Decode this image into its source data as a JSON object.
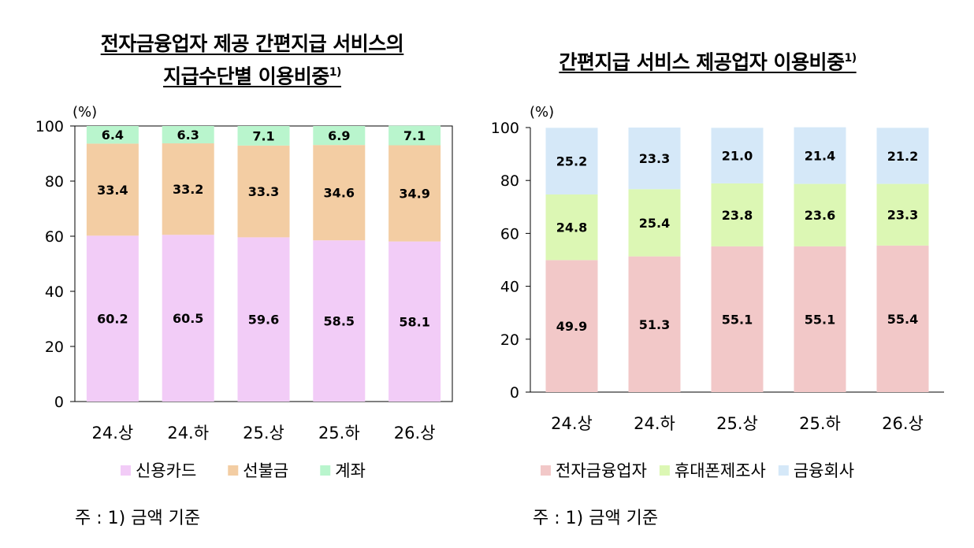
{
  "charts": {
    "left": {
      "title_line1": "전자금융업자 제공 간편지급 서비스의",
      "title_line2": "지급수단별 이용비중",
      "title_sup": "1)",
      "unit": "(%)",
      "note": "주 : 1) 금액 기준"
    },
    "right": {
      "title": "간편지급 서비스 제공업자 이용비중",
      "title_sup": "1)",
      "unit": "(%)",
      "note": "주 : 1) 금액 기준"
    }
  },
  "chart_data": [
    {
      "type": "bar",
      "stacked": true,
      "title": "전자금융업자 제공 간편지급 서비스의 지급수단별 이용비중 1)",
      "categories": [
        "24.상",
        "24.하",
        "25.상",
        "25.하",
        "26.상"
      ],
      "series": [
        {
          "name": "신용카드",
          "color": "#f2ccf7",
          "values": [
            60.2,
            60.5,
            59.6,
            58.5,
            58.1
          ]
        },
        {
          "name": "선불금",
          "color": "#f3cda3",
          "values": [
            33.4,
            33.2,
            33.3,
            34.6,
            34.9
          ]
        },
        {
          "name": "계좌",
          "color": "#b9f5cd",
          "values": [
            6.4,
            6.3,
            7.1,
            6.9,
            7.1
          ]
        }
      ],
      "ylabel": "(%)",
      "ylim": [
        0,
        100
      ],
      "yticks": [
        0,
        20,
        40,
        60,
        80,
        100
      ],
      "grid": false,
      "legend": "bottom"
    },
    {
      "type": "bar",
      "stacked": true,
      "title": "간편지급 서비스 제공업자 이용비중 1)",
      "categories": [
        "24.상",
        "24.하",
        "25.상",
        "25.하",
        "26.상"
      ],
      "series": [
        {
          "name": "전자금융업자",
          "color": "#f2c8c8",
          "values": [
            49.9,
            51.3,
            55.1,
            55.1,
            55.4
          ]
        },
        {
          "name": "휴대폰제조사",
          "color": "#dcf7b4",
          "values": [
            24.8,
            25.4,
            23.8,
            23.6,
            23.3
          ]
        },
        {
          "name": "금융회사",
          "color": "#d5e8f8",
          "values": [
            25.2,
            23.3,
            21.0,
            21.4,
            21.2
          ]
        }
      ],
      "ylabel": "(%)",
      "ylim": [
        0,
        100
      ],
      "yticks": [
        0,
        20,
        40,
        60,
        80,
        100
      ],
      "grid": false,
      "legend": "bottom"
    }
  ]
}
